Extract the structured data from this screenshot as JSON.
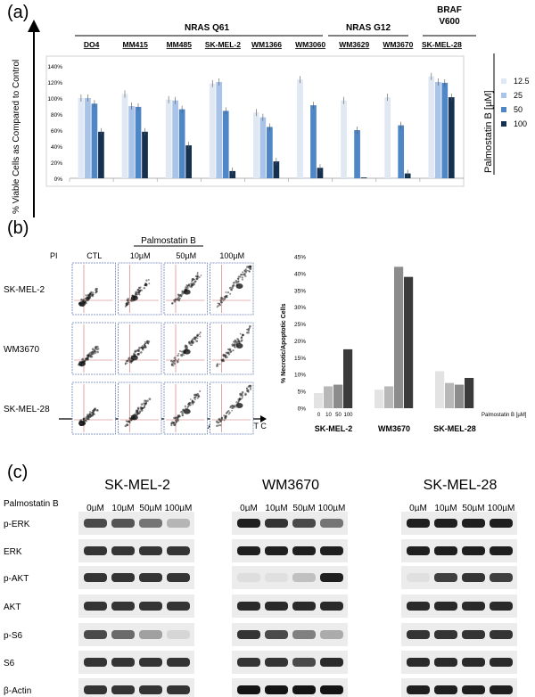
{
  "panels": {
    "a": "(a)",
    "b": "(b)",
    "c": "(c)"
  },
  "colors": {
    "c12_5": "#dfe8f3",
    "c25": "#a9c4e8",
    "c50": "#4f86c6",
    "c100": "#15314f"
  },
  "panel_a": {
    "y_axis_label": "% Viable Cells as Compared to Control",
    "groups": [
      {
        "label": "NRAS Q61"
      },
      {
        "label": "NRAS G12"
      },
      {
        "label_line1": "BRAF",
        "label_line2": "V600"
      }
    ],
    "legend_title": "Palmostatin B [µM]"
  },
  "chart_data": [
    {
      "type": "bar",
      "title": "",
      "ylabel": "% Viable Cells as Compared to Control",
      "ylim": [
        0,
        140
      ],
      "yticks": [
        "0%",
        "20%",
        "40%",
        "60%",
        "80%",
        "100%",
        "120%",
        "140%"
      ],
      "categories": [
        "DO4",
        "MM415",
        "MM485",
        "SK-MEL-2",
        "WM1366",
        "WM3060",
        "WM3629",
        "WM3670",
        "SK-MEL-28"
      ],
      "series": [
        {
          "name": "12.5",
          "values": [
            100,
            105,
            98,
            118,
            82,
            123,
            97,
            101,
            127
          ]
        },
        {
          "name": "25",
          "values": [
            100,
            90,
            97,
            120,
            76,
            0,
            0,
            0,
            120
          ]
        },
        {
          "name": "50",
          "values": [
            93,
            89,
            86,
            84,
            64,
            91,
            60,
            66,
            119
          ]
        },
        {
          "name": "100",
          "values": [
            58,
            58,
            41,
            9,
            21,
            13,
            1,
            6,
            101
          ]
        }
      ],
      "legend": [
        "12.5",
        "25",
        "50",
        "100"
      ],
      "legend_position": "right"
    },
    {
      "type": "bar",
      "ylabel": "% Necrotic/Apoptotic Cells",
      "ylim": [
        0,
        45
      ],
      "yticks": [
        "0%",
        "5%",
        "10%",
        "15%",
        "20%",
        "25%",
        "30%",
        "35%",
        "40%",
        "45%"
      ],
      "groups": [
        "SK-MEL-2",
        "WM3670",
        "SK-MEL-28"
      ],
      "dose_labels": [
        "0",
        "10",
        "50",
        "100"
      ],
      "dose_axis_label": "Palmostatin B [µM]",
      "series": [
        {
          "name": "SK-MEL-2",
          "values": [
            4.5,
            6.5,
            7,
            17.5
          ]
        },
        {
          "name": "WM3670",
          "values": [
            5.5,
            6.5,
            42,
            39
          ]
        },
        {
          "name": "SK-MEL-28",
          "values": [
            11,
            7.5,
            7,
            9
          ]
        }
      ]
    }
  ],
  "flow": {
    "header": "Palmostatin B",
    "pi_label": "PI",
    "columns": [
      "CTL",
      "10µM",
      "50µM",
      "100µM"
    ],
    "rows": [
      "SK-MEL-2",
      "WM3670",
      "SK-MEL-28"
    ],
    "x_axis_label": "Annexin V-FIT C"
  },
  "blot": {
    "treatment_label": "Palmostatin B",
    "cell_lines": [
      "SK-MEL-2",
      "WM3670",
      "SK-MEL-28"
    ],
    "doses": [
      "0µM",
      "10µM",
      "50µM",
      "100µM"
    ],
    "proteins": [
      "p-ERK",
      "ERK",
      "p-AKT",
      "AKT",
      "p-S6",
      "S6",
      "β-Actin"
    ],
    "intensity": [
      [
        [
          0.75,
          0.7,
          0.55,
          0.25
        ],
        [
          0.95,
          0.85,
          0.75,
          0.55
        ],
        [
          0.95,
          0.95,
          0.95,
          0.95
        ]
      ],
      [
        [
          0.85,
          0.85,
          0.85,
          0.85
        ],
        [
          0.95,
          0.95,
          0.95,
          0.95
        ],
        [
          0.95,
          0.95,
          0.95,
          0.95
        ]
      ],
      [
        [
          0.85,
          0.85,
          0.85,
          0.85
        ],
        [
          0.06,
          0.05,
          0.2,
          0.95
        ],
        [
          0.05,
          0.8,
          0.85,
          0.8
        ]
      ],
      [
        [
          0.85,
          0.85,
          0.85,
          0.85
        ],
        [
          0.9,
          0.9,
          0.9,
          0.9
        ],
        [
          0.9,
          0.9,
          0.9,
          0.9
        ]
      ],
      [
        [
          0.75,
          0.6,
          0.35,
          0.1
        ],
        [
          0.85,
          0.75,
          0.5,
          0.3
        ],
        [
          0.85,
          0.85,
          0.85,
          0.85
        ]
      ],
      [
        [
          0.85,
          0.85,
          0.85,
          0.85
        ],
        [
          0.85,
          0.85,
          0.75,
          0.9
        ],
        [
          0.9,
          0.9,
          0.9,
          0.9
        ]
      ],
      [
        [
          0.85,
          0.85,
          0.85,
          0.85
        ],
        [
          1.0,
          1.0,
          1.0,
          1.0
        ],
        [
          0.95,
          0.95,
          0.95,
          0.95
        ]
      ]
    ]
  }
}
